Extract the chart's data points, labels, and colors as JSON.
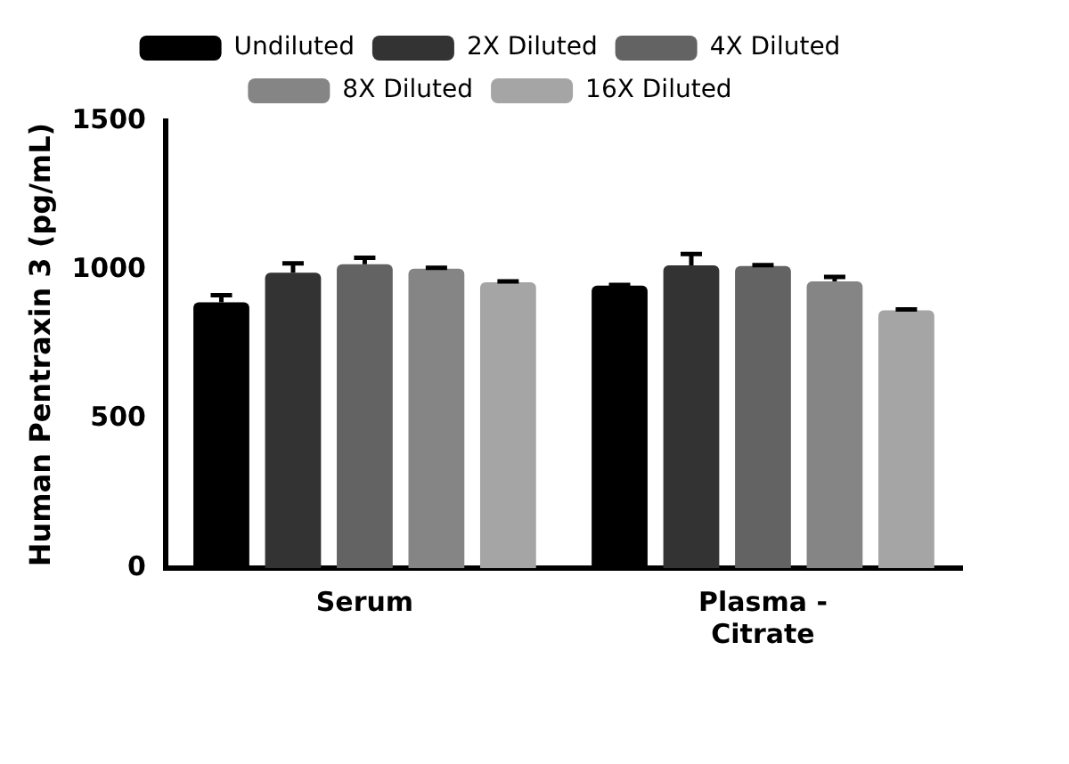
{
  "chart_data": {
    "type": "bar",
    "ylabel": "Human Pentraxin 3 (pg/mL)",
    "categories": [
      "Serum",
      "Plasma - Citrate"
    ],
    "series": [
      {
        "name": "Undiluted",
        "color": "#000000",
        "values": [
          892,
          948
        ],
        "errors": [
          24,
          2
        ]
      },
      {
        "name": "2X Diluted",
        "color": "#333333",
        "values": [
          991,
          1016
        ],
        "errors": [
          32,
          38
        ]
      },
      {
        "name": "4X Diluted",
        "color": "#636363",
        "values": [
          1020,
          1014
        ],
        "errors": [
          21,
          3
        ]
      },
      {
        "name": "8X Diluted",
        "color": "#858585",
        "values": [
          1005,
          962
        ],
        "errors": [
          3,
          15
        ]
      },
      {
        "name": "16X Diluted",
        "color": "#a5a5a6",
        "values": [
          959,
          865
        ],
        "errors": [
          3,
          3
        ]
      }
    ],
    "ylim": [
      0,
      1500
    ],
    "yticks": [
      0,
      500,
      1000,
      1500
    ],
    "grid": false,
    "legend": "top"
  }
}
